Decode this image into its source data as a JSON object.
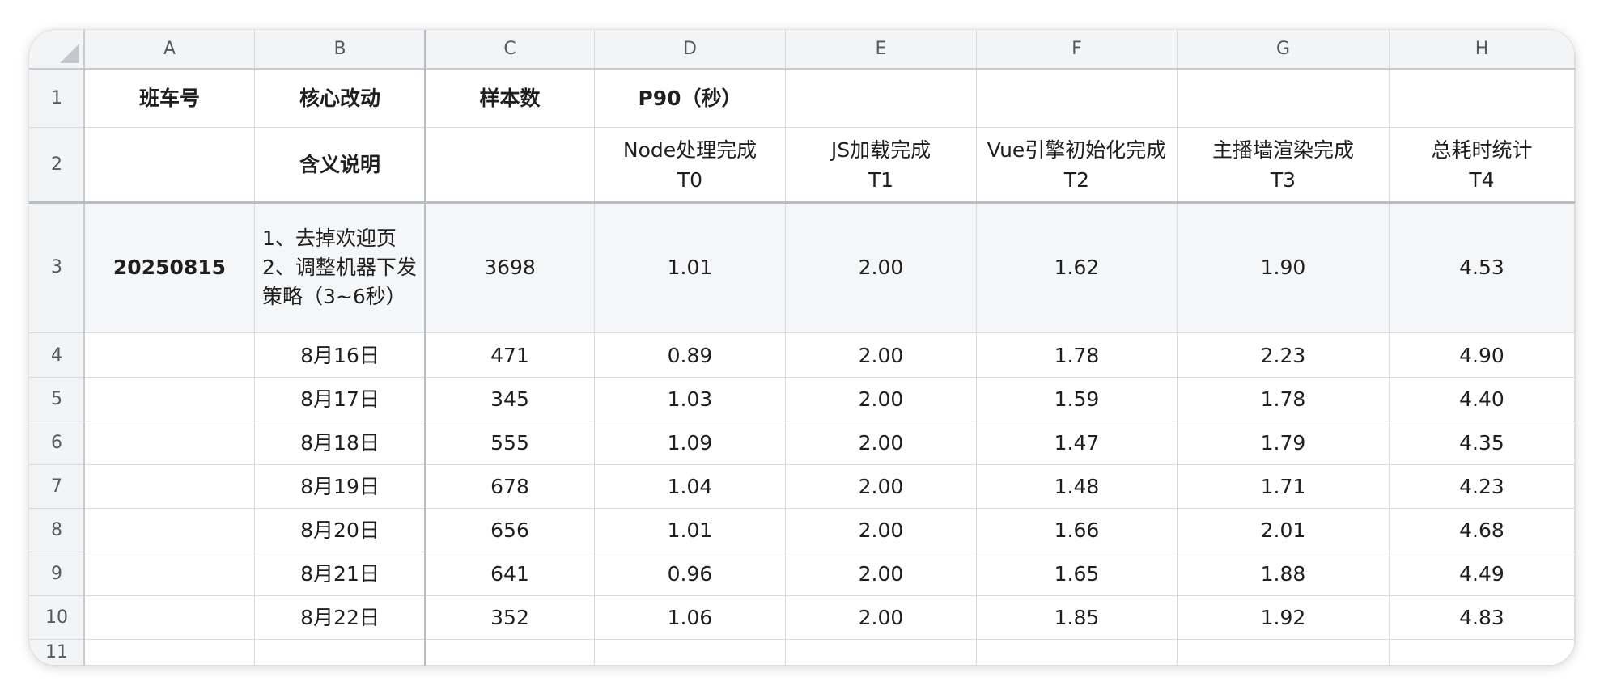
{
  "columns": [
    "A",
    "B",
    "C",
    "D",
    "E",
    "F",
    "G",
    "H"
  ],
  "row_numbers": [
    "1",
    "2",
    "3",
    "4",
    "5",
    "6",
    "7",
    "8",
    "9",
    "10",
    "11"
  ],
  "row1": {
    "A": "班车号",
    "B": "核心改动",
    "C": "样本数",
    "D": "P90（秒）"
  },
  "row2": {
    "B": "含义说明",
    "D": [
      "Node处理完成",
      "T0"
    ],
    "E": [
      "JS加载完成",
      "T1"
    ],
    "F": [
      "Vue引擎初始化完成",
      "T2"
    ],
    "G": [
      "主播墙渲染完成",
      "T3"
    ],
    "H": [
      "总耗时统计",
      "T4"
    ]
  },
  "row3": {
    "A": "20250815",
    "B": "1、去掉欢迎页\n2、调整机器下发策略（3~6秒）",
    "C": "3698",
    "D": "1.01",
    "E": "2.00",
    "F": "1.62",
    "G": "1.90",
    "H": "4.53"
  },
  "data_rows": [
    {
      "B": "8月16日",
      "C": "471",
      "D": "0.89",
      "E": "2.00",
      "F": "1.78",
      "G": "2.23",
      "H": "4.90"
    },
    {
      "B": "8月17日",
      "C": "345",
      "D": "1.03",
      "E": "2.00",
      "F": "1.59",
      "G": "1.78",
      "H": "4.40"
    },
    {
      "B": "8月18日",
      "C": "555",
      "D": "1.09",
      "E": "2.00",
      "F": "1.47",
      "G": "1.79",
      "H": "4.35"
    },
    {
      "B": "8月19日",
      "C": "678",
      "D": "1.04",
      "E": "2.00",
      "F": "1.48",
      "G": "1.71",
      "H": "4.23"
    },
    {
      "B": "8月20日",
      "C": "656",
      "D": "1.01",
      "E": "2.00",
      "F": "1.66",
      "G": "2.01",
      "H": "4.68"
    },
    {
      "B": "8月21日",
      "C": "641",
      "D": "0.96",
      "E": "2.00",
      "F": "1.65",
      "G": "1.88",
      "H": "4.49"
    },
    {
      "B": "8月22日",
      "C": "352",
      "D": "1.06",
      "E": "2.00",
      "F": "1.85",
      "G": "1.92",
      "H": "4.83"
    }
  ]
}
